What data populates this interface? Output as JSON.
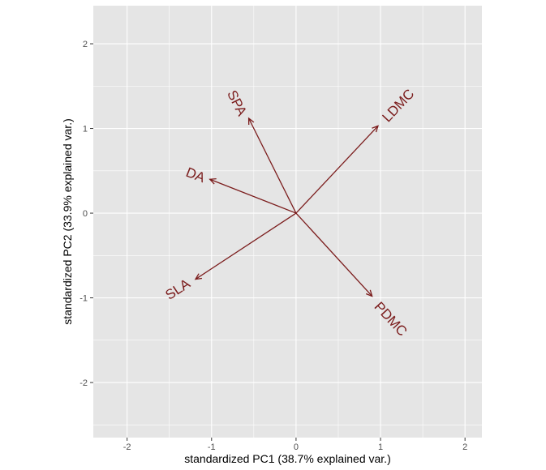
{
  "chart_data": {
    "type": "scatter",
    "subtype": "pca-biplot-loadings",
    "title": "",
    "xlabel": "standardized PC1 (38.7% explained var.)",
    "ylabel": "standardized PC2 (33.9% explained var.)",
    "xlim": [
      -2.4,
      2.2
    ],
    "ylim": [
      -2.65,
      2.45
    ],
    "x_ticks": [
      -2,
      -1,
      0,
      1,
      2
    ],
    "y_ticks": [
      -2,
      -1,
      0,
      1,
      2
    ],
    "grid": true,
    "legend": "none",
    "colors": {
      "panel_background": "#e5e5e5",
      "grid_line": "#ffffff",
      "vector": "#7b1c1c"
    },
    "vectors": [
      {
        "name": "SPA",
        "x": -0.56,
        "y": 1.12,
        "label_x": -0.7,
        "label_y": 1.3,
        "label_angle": 63.4
      },
      {
        "name": "LDMC",
        "x": 0.97,
        "y": 1.03,
        "label_x": 1.21,
        "label_y": 1.27,
        "label_angle": -46.7
      },
      {
        "name": "DA",
        "x": -1.02,
        "y": 0.4,
        "label_x": -1.19,
        "label_y": 0.45,
        "label_angle": 21.4
      },
      {
        "name": "SLA",
        "x": -1.19,
        "y": -0.78,
        "label_x": -1.4,
        "label_y": -0.9,
        "label_angle": -33.2
      },
      {
        "name": "PDMC",
        "x": 0.9,
        "y": -0.98,
        "label_x": 1.12,
        "label_y": -1.25,
        "label_angle": 47.4
      }
    ]
  }
}
